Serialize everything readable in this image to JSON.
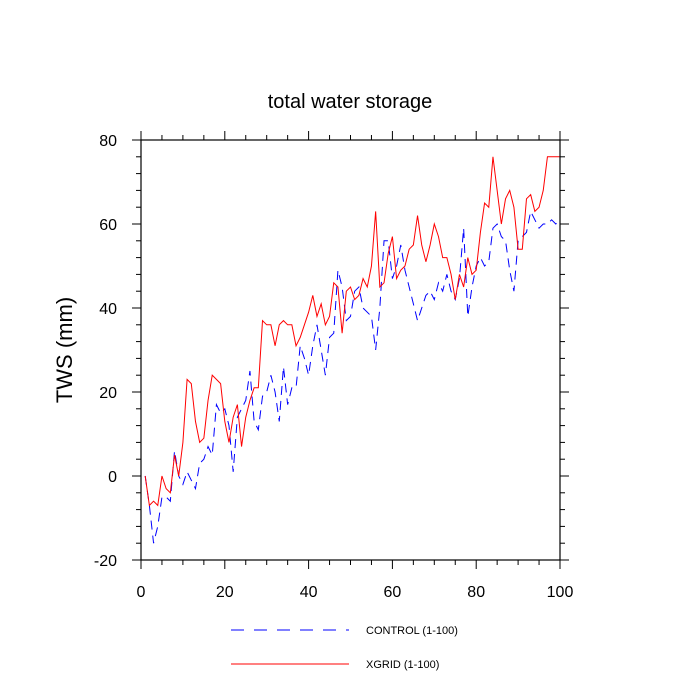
{
  "chart_data": {
    "type": "line",
    "title": "total water storage",
    "xlabel": "",
    "ylabel": "TWS (mm)",
    "xlim": [
      0,
      100
    ],
    "ylim": [
      -20,
      80
    ],
    "xticks": [
      0,
      20,
      40,
      60,
      80,
      100
    ],
    "yticks": [
      -20,
      0,
      20,
      40,
      60,
      80
    ],
    "grid": false,
    "legend_position": "bottom-center",
    "series": [
      {
        "name": "CONTROL (1-100)",
        "color": "#0000ff",
        "style": "dashed",
        "x": [
          1,
          2,
          3,
          4,
          5,
          6,
          7,
          8,
          9,
          10,
          11,
          12,
          13,
          14,
          15,
          16,
          17,
          18,
          19,
          20,
          21,
          22,
          23,
          24,
          25,
          26,
          27,
          28,
          29,
          30,
          31,
          32,
          33,
          34,
          35,
          36,
          37,
          38,
          39,
          40,
          41,
          42,
          43,
          44,
          45,
          46,
          47,
          48,
          49,
          50,
          51,
          52,
          53,
          54,
          55,
          56,
          57,
          58,
          59,
          60,
          61,
          62,
          63,
          64,
          65,
          66,
          67,
          68,
          69,
          70,
          71,
          72,
          73,
          74,
          75,
          76,
          77,
          78,
          79,
          80,
          81,
          82,
          83,
          84,
          85,
          86,
          87,
          88,
          89,
          90,
          91,
          92,
          93,
          94,
          95,
          96,
          97,
          98,
          99,
          100
        ],
        "y": [
          0,
          -7,
          -16,
          -12,
          -5,
          -5,
          -6,
          6,
          0,
          -2,
          1,
          -1,
          -3,
          3,
          4,
          7,
          5,
          17,
          15,
          16,
          12,
          1,
          14,
          16,
          18,
          25,
          13,
          11,
          19,
          20,
          24,
          20,
          13,
          26,
          17,
          21,
          21,
          31,
          28,
          24,
          31,
          36,
          30,
          24,
          33,
          34,
          49,
          45,
          37,
          38,
          44,
          45,
          40,
          39,
          38,
          30,
          40,
          56,
          56,
          47,
          50,
          55,
          49,
          45,
          41,
          37,
          40,
          43,
          44,
          42,
          46,
          44,
          48,
          44,
          42,
          47,
          59,
          38,
          45,
          50,
          52,
          50,
          51,
          59,
          60,
          57,
          56,
          49,
          44,
          56,
          57,
          58,
          63,
          61,
          59,
          60,
          60,
          61,
          60,
          61
        ]
      },
      {
        "name": "XGRID (1-100)",
        "color": "#ff0000",
        "style": "solid",
        "x": [
          1,
          2,
          3,
          4,
          5,
          6,
          7,
          8,
          9,
          10,
          11,
          12,
          13,
          14,
          15,
          16,
          17,
          18,
          19,
          20,
          21,
          22,
          23,
          24,
          25,
          26,
          27,
          28,
          29,
          30,
          31,
          32,
          33,
          34,
          35,
          36,
          37,
          38,
          39,
          40,
          41,
          42,
          43,
          44,
          45,
          46,
          47,
          48,
          49,
          50,
          51,
          52,
          53,
          54,
          55,
          56,
          57,
          58,
          59,
          60,
          61,
          62,
          63,
          64,
          65,
          66,
          67,
          68,
          69,
          70,
          71,
          72,
          73,
          74,
          75,
          76,
          77,
          78,
          79,
          80,
          81,
          82,
          83,
          84,
          85,
          86,
          87,
          88,
          89,
          90,
          91,
          92,
          93,
          94,
          95,
          96,
          97,
          98,
          99,
          100
        ],
        "y": [
          0,
          -7,
          -6,
          -7,
          0,
          -3,
          -4,
          5,
          0,
          8,
          23,
          22,
          13,
          8,
          9,
          18,
          24,
          23,
          22,
          13,
          8,
          14,
          17,
          7,
          14,
          18,
          21,
          21,
          37,
          36,
          36,
          31,
          36,
          37,
          36,
          36,
          31,
          33,
          36,
          39,
          43,
          38,
          41,
          36,
          38,
          46,
          45,
          34,
          44,
          45,
          42,
          43,
          47,
          45,
          50,
          63,
          45,
          46,
          53,
          57,
          47,
          49,
          50,
          54,
          55,
          62,
          55,
          51,
          55,
          60,
          57,
          52,
          52,
          48,
          42,
          48,
          45,
          52,
          48,
          49,
          58,
          65,
          64,
          76,
          68,
          60,
          66,
          68,
          64,
          54,
          54,
          66,
          67,
          63,
          64,
          68,
          76,
          76,
          76,
          76
        ]
      }
    ]
  }
}
